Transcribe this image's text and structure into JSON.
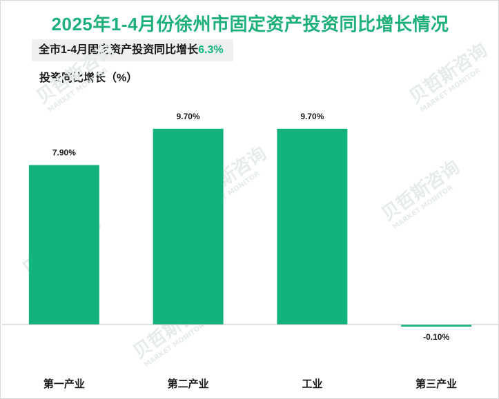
{
  "colors": {
    "title": "#1db07a",
    "bar": "#13b47c",
    "highlight": "#13b47c",
    "axis": "#bfbfbf",
    "text": "#1a1a1a"
  },
  "header": {
    "title": "2025年1-4月份徐州市固定资产投资同比增长情况",
    "summary_prefix": "全市1-4月固定资产投资同比增长",
    "summary_value": "6.3%"
  },
  "watermark": {
    "brand": "贝哲斯咨询",
    "sub": "MARKET MONITOR"
  },
  "chart_data": {
    "type": "bar",
    "title": "2025年1-4月份徐州市固定资产投资同比增长情况",
    "ylabel": "投资同比增长（%）",
    "xlabel": "",
    "categories": [
      "第一产业",
      "第二产业",
      "工业",
      "第三产业"
    ],
    "values": [
      7.9,
      9.7,
      9.7,
      -0.1
    ],
    "data_labels": [
      "7.90%",
      "9.70%",
      "9.70%",
      "-0.10%"
    ],
    "ylim": [
      -0.2,
      10.8
    ],
    "grid": false
  }
}
